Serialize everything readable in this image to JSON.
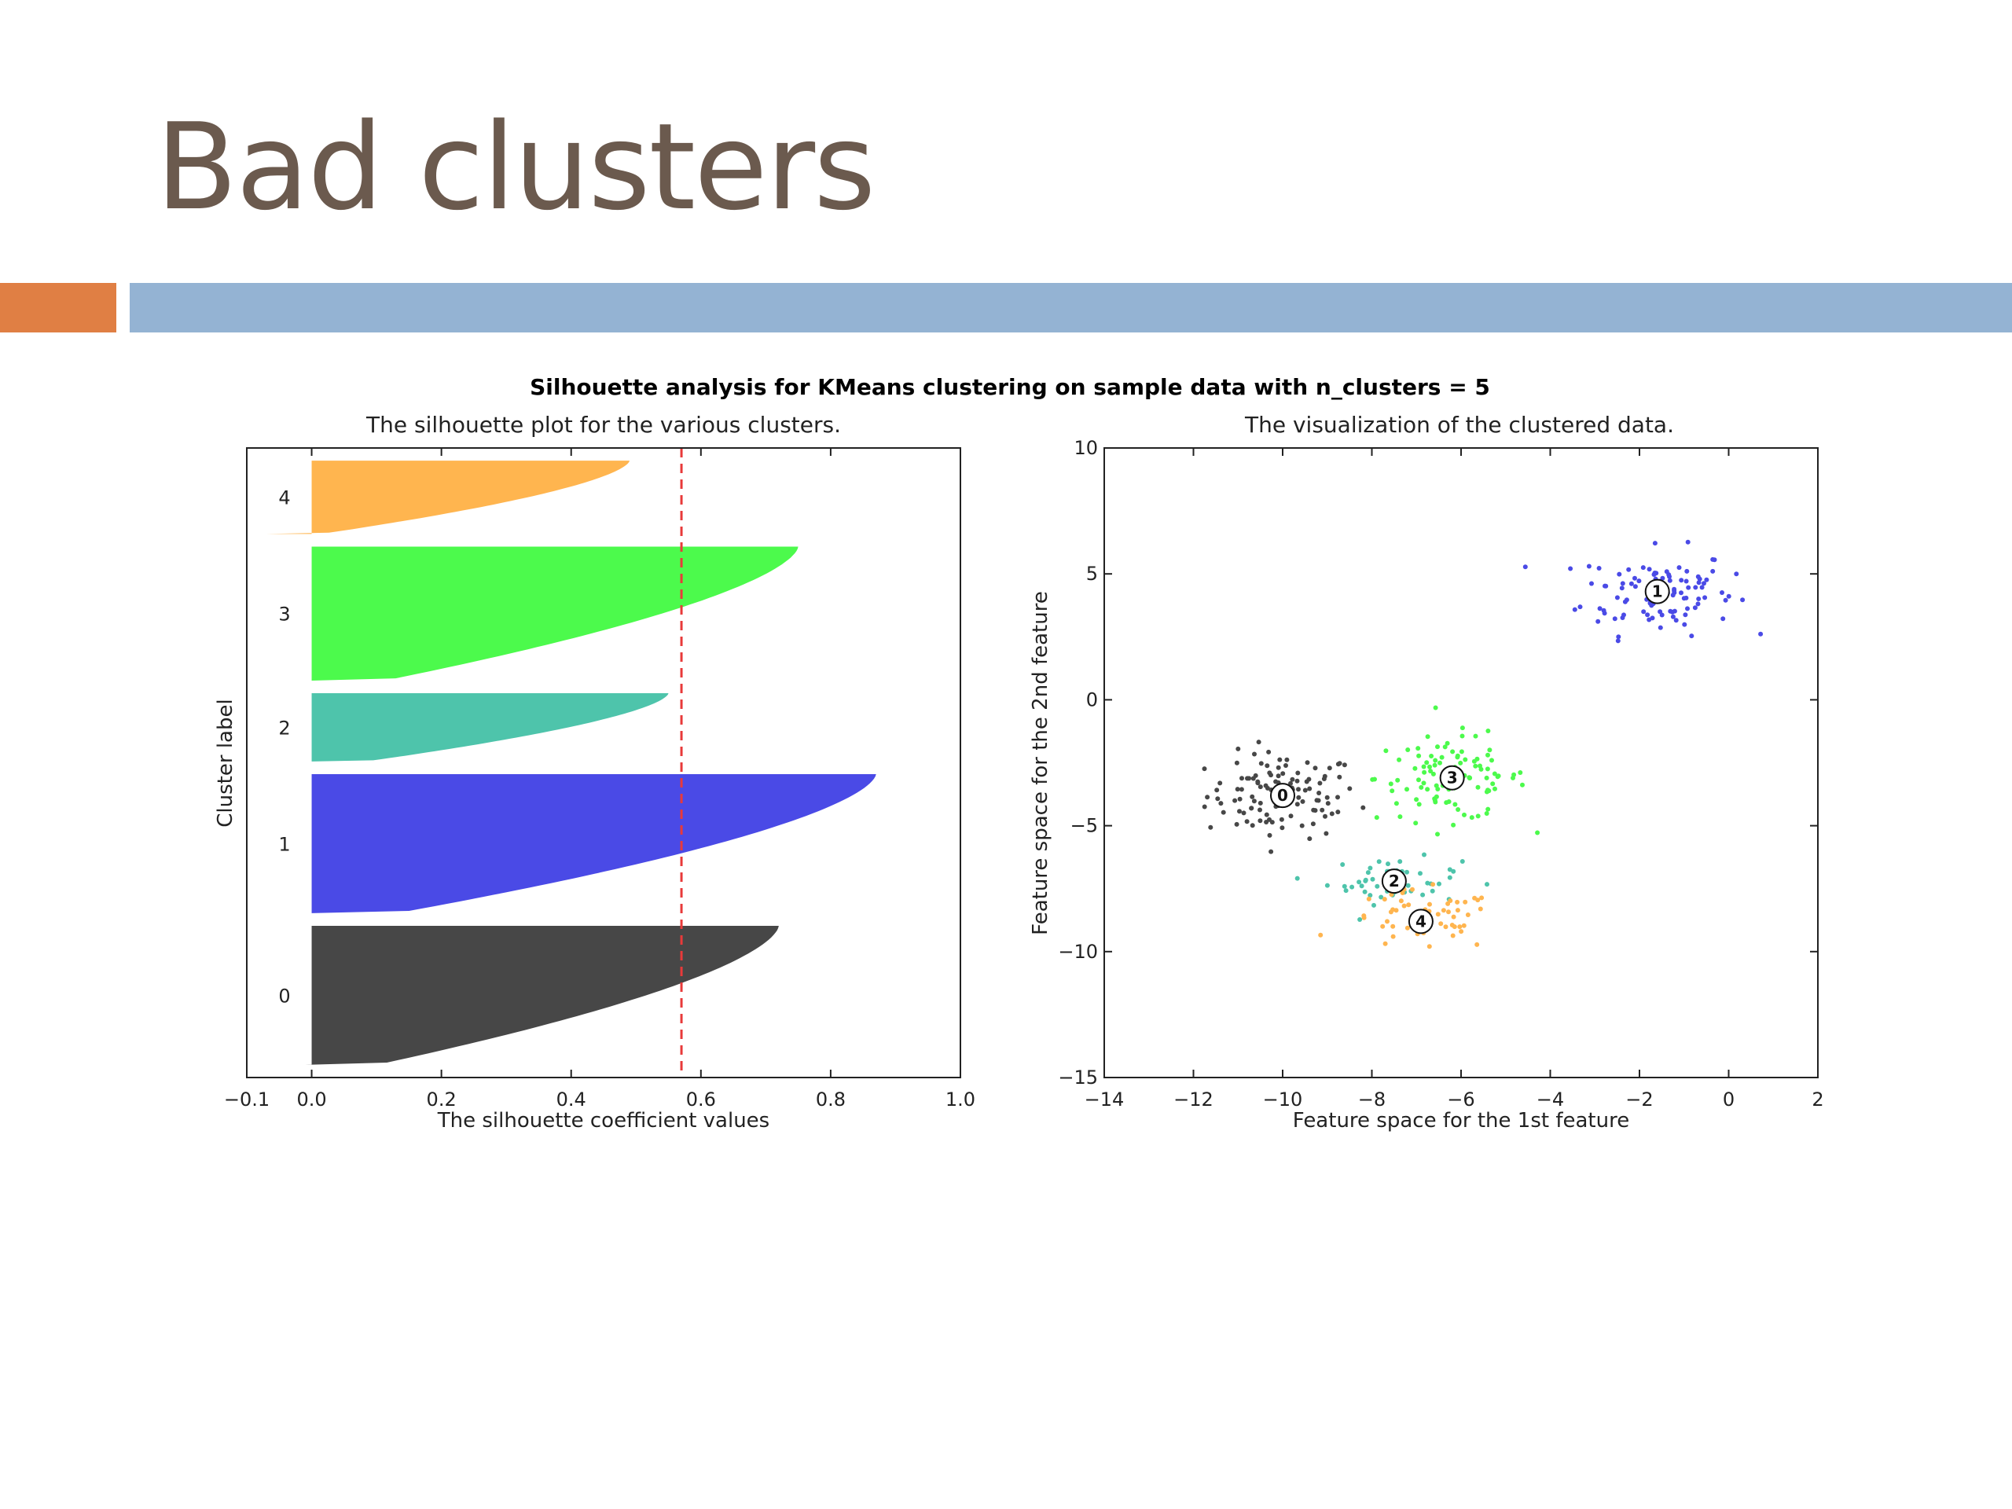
{
  "slide": {
    "title": "Bad clusters",
    "accent_color": "#e07f44",
    "bar_color": "#94b3d3",
    "title_color": "#6b5a4e"
  },
  "chart_data": [
    {
      "type": "silhouette",
      "suptitle": "Silhouette analysis for KMeans clustering on sample data with n_clusters = 5",
      "title": "The silhouette plot for the various clusters.",
      "xlabel": "The silhouette coefficient values",
      "ylabel": "Cluster label",
      "xlim": [
        -0.1,
        1.0
      ],
      "x_ticks": [
        "−0.1",
        "0.0",
        "0.2",
        "0.4",
        "0.6",
        "0.8",
        "1.0"
      ],
      "average_silhouette": 0.57,
      "clusters": [
        {
          "label": "0",
          "size": 110,
          "max": 0.72,
          "min": -0.01,
          "color": "#474747"
        },
        {
          "label": "1",
          "size": 110,
          "max": 0.87,
          "min": 0.0,
          "color": "#4a4ae6"
        },
        {
          "label": "2",
          "size": 54,
          "max": 0.55,
          "min": 0.0,
          "color": "#4ec4ab"
        },
        {
          "label": "3",
          "size": 106,
          "max": 0.75,
          "min": 0.0,
          "color": "#4cfa4c"
        },
        {
          "label": "4",
          "size": 58,
          "max": 0.49,
          "min": -0.07,
          "color": "#ffb54f"
        }
      ],
      "grid": false
    },
    {
      "type": "scatter",
      "title": "The visualization of the clustered data.",
      "xlabel": "Feature space for the 1st feature",
      "ylabel": "Feature space for the 2nd feature",
      "xlim": [
        -14,
        2
      ],
      "ylim": [
        -15,
        10
      ],
      "x_ticks": [
        "−14",
        "−12",
        "−10",
        "−8",
        "−6",
        "−4",
        "−2",
        "0",
        "2"
      ],
      "y_ticks": [
        "−15",
        "−10",
        "−5",
        "0",
        "5",
        "10"
      ],
      "grid": false,
      "clusters": [
        {
          "label": "0",
          "center": [
            -10.0,
            -3.8
          ],
          "spread": [
            0.85,
            0.85
          ],
          "count": 110,
          "color": "#474747"
        },
        {
          "label": "1",
          "center": [
            -1.6,
            4.3
          ],
          "spread": [
            0.85,
            0.85
          ],
          "count": 110,
          "color": "#4a4ae6"
        },
        {
          "label": "2",
          "center": [
            -7.5,
            -7.2
          ],
          "spread": [
            0.75,
            0.45
          ],
          "count": 54,
          "color": "#4ec4ab"
        },
        {
          "label": "3",
          "center": [
            -6.2,
            -3.1
          ],
          "spread": [
            0.85,
            0.85
          ],
          "count": 106,
          "color": "#4cfa4c"
        },
        {
          "label": "4",
          "center": [
            -6.9,
            -8.8
          ],
          "spread": [
            0.85,
            0.6
          ],
          "count": 58,
          "color": "#ffb54f"
        }
      ]
    }
  ]
}
